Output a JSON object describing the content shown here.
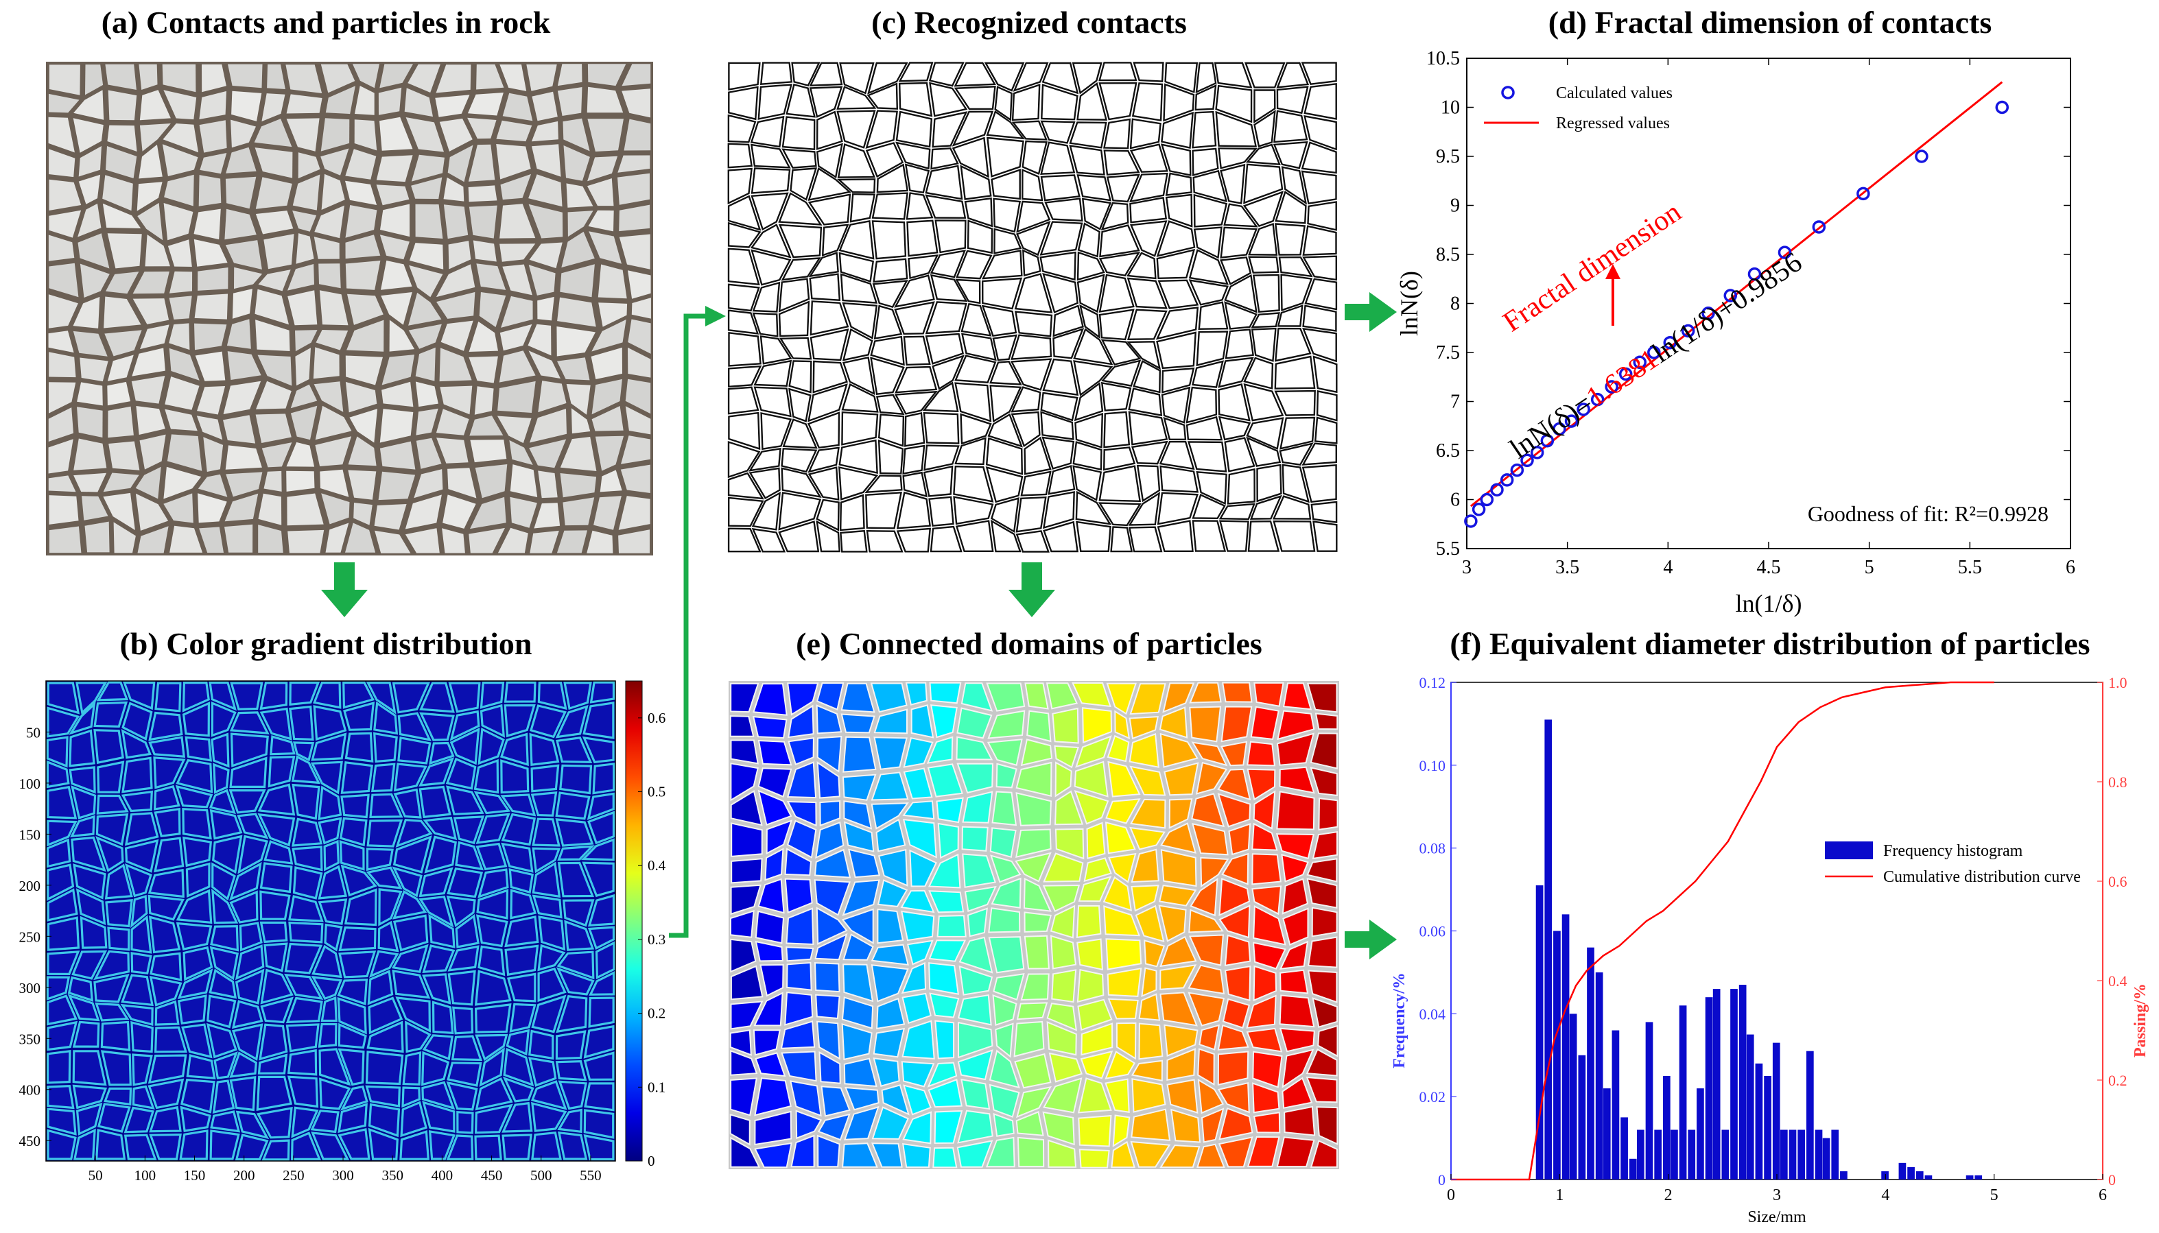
{
  "panels": {
    "a": {
      "title": "(a) Contacts and particles in rock"
    },
    "b": {
      "title": "(b) Color gradient distribution",
      "y_ticks": [
        "50",
        "100",
        "150",
        "200",
        "250",
        "300",
        "350",
        "400",
        "450"
      ],
      "x_ticks": [
        "50",
        "100",
        "150",
        "200",
        "250",
        "300",
        "350",
        "400",
        "450",
        "500",
        "550"
      ],
      "colorbar_ticks": [
        "0.6",
        "0.5",
        "0.4",
        "0.3",
        "0.2",
        "0.1",
        "0"
      ]
    },
    "c": {
      "title": "(c) Recognized contacts"
    },
    "d": {
      "title": "(d) Fractal dimension of contacts"
    },
    "e": {
      "title": "(e) Connected domains of particles"
    },
    "f": {
      "title": "(f) Equivalent diameter distribution of particles"
    }
  },
  "chart_data": [
    {
      "id": "d",
      "type": "scatter",
      "title": "(d) Fractal dimension of contacts",
      "xlabel": "ln(1/δ)",
      "ylabel": "lnN(δ)",
      "xlim": [
        3,
        6
      ],
      "ylim": [
        5.5,
        10.5
      ],
      "x_ticks": [
        3,
        3.5,
        4,
        4.5,
        5,
        5.5,
        6
      ],
      "y_ticks": [
        5.5,
        6,
        6.5,
        7,
        7.5,
        8,
        8.5,
        9,
        9.5,
        10,
        10.5
      ],
      "series": [
        {
          "name": "Calculated values",
          "color": "#1515e0",
          "x": [
            3.02,
            3.06,
            3.1,
            3.15,
            3.2,
            3.25,
            3.3,
            3.35,
            3.4,
            3.46,
            3.52,
            3.58,
            3.65,
            3.72,
            3.79,
            3.86,
            3.93,
            4.01,
            4.1,
            4.2,
            4.31,
            4.43,
            4.58,
            4.75,
            4.97,
            5.26,
            5.66
          ],
          "y": [
            5.78,
            5.9,
            6.0,
            6.1,
            6.2,
            6.3,
            6.4,
            6.48,
            6.6,
            6.72,
            6.8,
            6.92,
            7.02,
            7.15,
            7.28,
            7.4,
            7.5,
            7.6,
            7.72,
            7.9,
            8.08,
            8.3,
            8.52,
            8.78,
            9.12,
            9.5,
            10.0
          ]
        },
        {
          "name": "Regressed values",
          "color": "#ff0000",
          "line": {
            "slope": 1.6381,
            "intercept": 0.9856,
            "x": [
              3.02,
              5.66
            ]
          }
        }
      ],
      "annotations": {
        "equation_prefix": "lnN(δ)=",
        "equation_slope": "1.6381",
        "equation_suffix": "ln(1/δ)+0.9856",
        "arrow_label": "Fractal dimension",
        "goodness": "Goodness of fit: R²=0.9928"
      }
    },
    {
      "id": "f",
      "type": "bar",
      "title": "(f) Equivalent diameter distribution of particles",
      "xlabel": "Size/mm",
      "ylabel_left": "Frequency/%",
      "ylabel_right": "Passing/%",
      "xlim": [
        0,
        6
      ],
      "ylim_left": [
        0,
        0.12
      ],
      "ylim_right": [
        0,
        1.0
      ],
      "x_ticks": [
        0,
        1,
        2,
        3,
        4,
        5,
        6
      ],
      "y_ticks_left": [
        "0",
        "0.02",
        "0.04",
        "0.06",
        "0.08",
        "0.10",
        "0.12"
      ],
      "y_ticks_right": [
        "0",
        "0.2",
        "0.4",
        "0.6",
        "0.8",
        "1.0"
      ],
      "bar_width": 0.077,
      "bars": {
        "name": "Frequency histogram",
        "color": "#0a0acb",
        "x": [
          0.82,
          0.9,
          0.98,
          1.06,
          1.13,
          1.21,
          1.29,
          1.37,
          1.44,
          1.52,
          1.6,
          1.68,
          1.75,
          1.83,
          1.91,
          1.99,
          2.06,
          2.14,
          2.22,
          2.3,
          2.38,
          2.45,
          2.53,
          2.61,
          2.69,
          2.76,
          2.84,
          2.92,
          3.0,
          3.07,
          3.15,
          3.23,
          3.31,
          3.39,
          3.46,
          3.54,
          3.62,
          4.0,
          4.16,
          4.24,
          4.32,
          4.4,
          4.78,
          4.86
        ],
        "values": [
          0.071,
          0.111,
          0.06,
          0.064,
          0.04,
          0.03,
          0.056,
          0.05,
          0.022,
          0.036,
          0.015,
          0.005,
          0.012,
          0.038,
          0.012,
          0.025,
          0.012,
          0.042,
          0.012,
          0.022,
          0.044,
          0.046,
          0.012,
          0.046,
          0.047,
          0.035,
          0.028,
          0.025,
          0.033,
          0.012,
          0.012,
          0.012,
          0.031,
          0.012,
          0.01,
          0.012,
          0.002,
          0.002,
          0.004,
          0.003,
          0.002,
          0.001,
          0.001,
          0.001
        ]
      },
      "curve": {
        "name": "Cumulative distribution curve",
        "color": "#ff0000",
        "x": [
          0.0,
          0.72,
          0.78,
          0.86,
          0.95,
          1.05,
          1.15,
          1.25,
          1.4,
          1.55,
          1.7,
          1.8,
          1.95,
          2.1,
          2.25,
          2.4,
          2.55,
          2.7,
          2.85,
          3.0,
          3.2,
          3.4,
          3.6,
          3.8,
          4.0,
          4.3,
          4.6,
          5.0
        ],
        "values": [
          0.0,
          0.0,
          0.08,
          0.19,
          0.28,
          0.34,
          0.39,
          0.42,
          0.45,
          0.47,
          0.5,
          0.52,
          0.54,
          0.57,
          0.6,
          0.64,
          0.68,
          0.74,
          0.8,
          0.87,
          0.92,
          0.95,
          0.97,
          0.98,
          0.99,
          0.995,
          1.0,
          1.0
        ]
      }
    }
  ],
  "colors": {
    "flow_arrow": "#1aad4a",
    "jet_low": "#00008f",
    "jet_high": "#7f0000",
    "rock_bg": "#6b5f54",
    "rock_particle": "#dcdcda"
  }
}
